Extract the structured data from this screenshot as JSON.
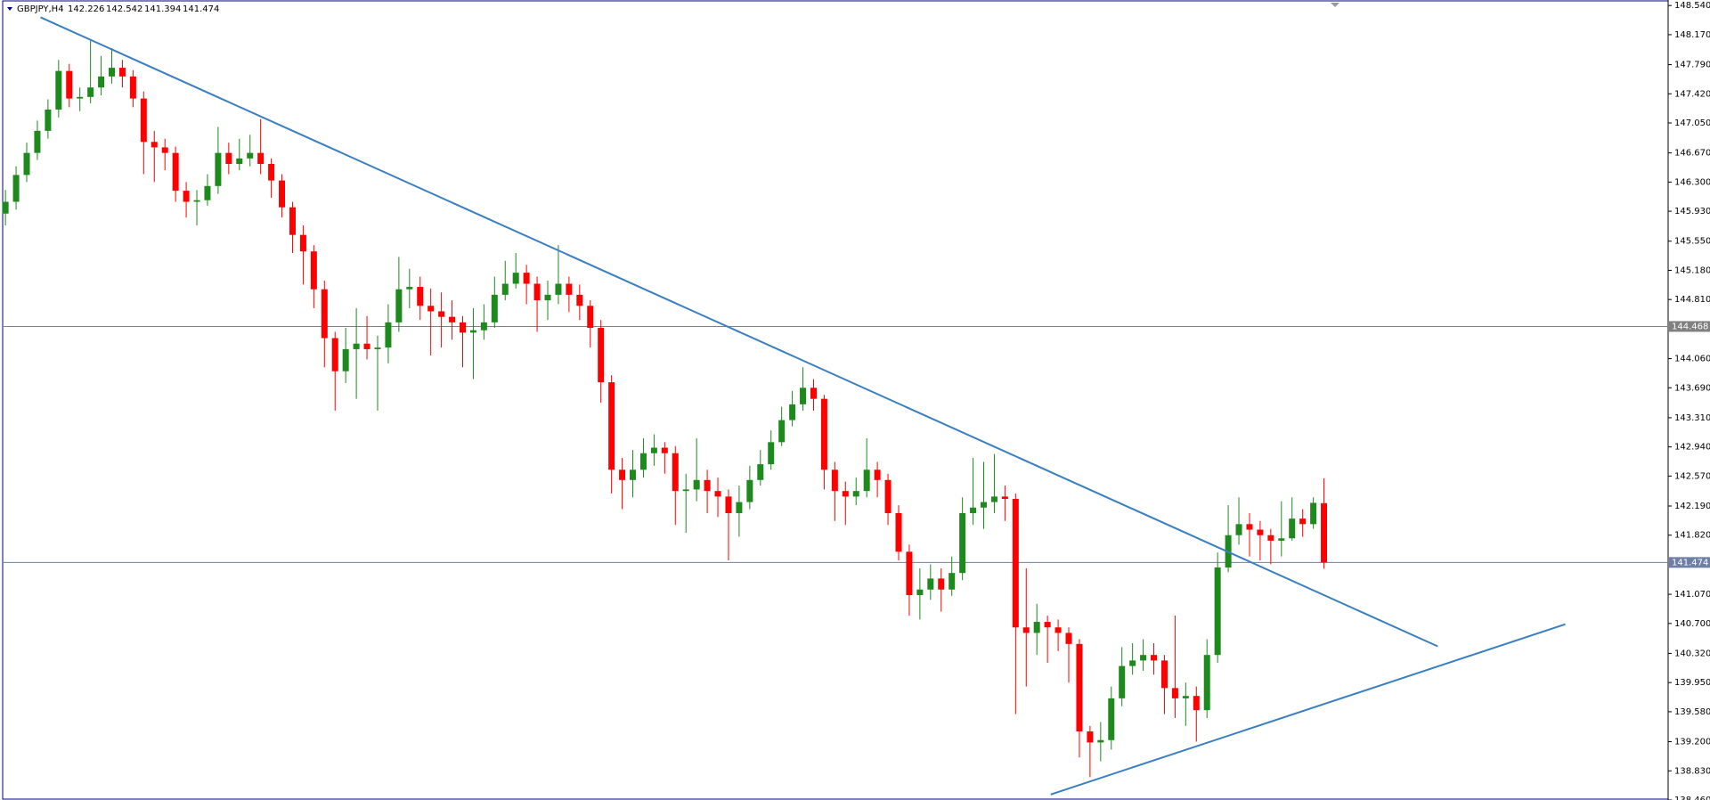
{
  "chart_data": {
    "type": "candlestick",
    "symbol": "GBPJPY,H4",
    "header_values": [
      142.226,
      142.542,
      141.394,
      141.474
    ],
    "up_color": "#1e8a1e",
    "down_color": "#ff0000",
    "ylim": [
      138.46,
      148.61
    ],
    "yticks": [
      {
        "value": 148.54,
        "label": "148.540"
      },
      {
        "value": 148.17,
        "label": "148.170"
      },
      {
        "value": 147.79,
        "label": "147.790"
      },
      {
        "value": 147.42,
        "label": "147.420"
      },
      {
        "value": 147.05,
        "label": "147.050"
      },
      {
        "value": 146.67,
        "label": "146.670"
      },
      {
        "value": 146.3,
        "label": "146.300"
      },
      {
        "value": 145.93,
        "label": "145.930"
      },
      {
        "value": 145.55,
        "label": "145.550"
      },
      {
        "value": 145.18,
        "label": "145.180"
      },
      {
        "value": 144.81,
        "label": "144.810"
      },
      {
        "value": 144.06,
        "label": "144.060"
      },
      {
        "value": 143.69,
        "label": "143.690"
      },
      {
        "value": 143.31,
        "label": "143.310"
      },
      {
        "value": 142.94,
        "label": "142.940"
      },
      {
        "value": 142.57,
        "label": "142.570"
      },
      {
        "value": 142.19,
        "label": "142.190"
      },
      {
        "value": 141.82,
        "label": "141.820"
      },
      {
        "value": 141.07,
        "label": "141.070"
      },
      {
        "value": 140.7,
        "label": "140.700"
      },
      {
        "value": 140.32,
        "label": "140.320"
      },
      {
        "value": 139.95,
        "label": "139.950"
      },
      {
        "value": 139.58,
        "label": "139.580"
      },
      {
        "value": 139.2,
        "label": "139.200"
      },
      {
        "value": 138.83,
        "label": "138.830"
      },
      {
        "value": 138.46,
        "label": "138.460"
      }
    ],
    "hlines": [
      {
        "value": 144.468,
        "color": "#808080"
      },
      {
        "value": 141.474,
        "color": "#6d7fa6"
      }
    ],
    "trendlines": [
      {
        "from": [
          3.3,
          148.39
        ],
        "to": [
          134.7,
          140.41
        ],
        "color": "#3a7fc0"
      },
      {
        "from": [
          98.3,
          138.53
        ],
        "to": [
          146.7,
          140.69
        ],
        "color": "#3a7fc0"
      }
    ],
    "ohlc": [
      [
        145.9,
        146.2,
        145.75,
        146.05
      ],
      [
        146.05,
        146.5,
        145.95,
        146.39
      ],
      [
        146.39,
        146.8,
        146.3,
        146.67
      ],
      [
        146.67,
        147.08,
        146.58,
        146.95
      ],
      [
        146.95,
        147.35,
        146.85,
        147.22
      ],
      [
        147.22,
        147.85,
        147.12,
        147.71
      ],
      [
        147.71,
        147.8,
        147.25,
        147.36
      ],
      [
        147.36,
        147.5,
        147.2,
        147.38
      ],
      [
        147.38,
        148.1,
        147.3,
        147.5
      ],
      [
        147.5,
        147.9,
        147.4,
        147.64
      ],
      [
        147.64,
        148.0,
        147.55,
        147.75
      ],
      [
        147.75,
        147.85,
        147.5,
        147.64
      ],
      [
        147.64,
        147.72,
        147.25,
        147.36
      ],
      [
        147.36,
        147.45,
        146.4,
        146.81
      ],
      [
        146.81,
        146.95,
        146.3,
        146.74
      ],
      [
        146.74,
        146.85,
        146.45,
        146.67
      ],
      [
        146.67,
        146.75,
        146.05,
        146.19
      ],
      [
        146.19,
        146.3,
        145.85,
        146.05
      ],
      [
        146.05,
        146.2,
        145.75,
        146.07
      ],
      [
        146.07,
        146.4,
        146.0,
        146.25
      ],
      [
        146.25,
        147.0,
        146.15,
        146.67
      ],
      [
        146.67,
        146.8,
        146.4,
        146.53
      ],
      [
        146.53,
        146.85,
        146.45,
        146.6
      ],
      [
        146.6,
        146.9,
        146.5,
        146.67
      ],
      [
        146.67,
        147.1,
        146.4,
        146.53
      ],
      [
        146.53,
        146.6,
        146.1,
        146.32
      ],
      [
        146.32,
        146.4,
        145.85,
        145.98
      ],
      [
        145.98,
        146.05,
        145.4,
        145.63
      ],
      [
        145.63,
        145.75,
        145.0,
        145.42
      ],
      [
        145.42,
        145.5,
        144.7,
        144.94
      ],
      [
        144.94,
        145.05,
        143.95,
        144.32
      ],
      [
        144.32,
        144.4,
        143.4,
        143.9
      ],
      [
        143.9,
        144.45,
        143.75,
        144.18
      ],
      [
        144.18,
        144.7,
        143.55,
        144.25
      ],
      [
        144.25,
        144.6,
        144.05,
        144.18
      ],
      [
        144.18,
        144.35,
        143.4,
        144.2
      ],
      [
        144.2,
        144.75,
        144.0,
        144.52
      ],
      [
        144.52,
        145.35,
        144.4,
        144.94
      ],
      [
        144.94,
        145.2,
        144.7,
        144.97
      ],
      [
        144.97,
        145.1,
        144.55,
        144.73
      ],
      [
        144.73,
        144.95,
        144.1,
        144.66
      ],
      [
        144.66,
        144.9,
        144.2,
        144.59
      ],
      [
        144.59,
        144.8,
        144.3,
        144.52
      ],
      [
        144.52,
        144.6,
        143.95,
        144.39
      ],
      [
        144.39,
        144.7,
        143.8,
        144.42
      ],
      [
        144.42,
        144.75,
        144.3,
        144.52
      ],
      [
        144.52,
        145.1,
        144.45,
        144.87
      ],
      [
        144.87,
        145.3,
        144.8,
        145.01
      ],
      [
        145.01,
        145.4,
        144.95,
        145.15
      ],
      [
        145.15,
        145.25,
        144.75,
        145.01
      ],
      [
        145.01,
        145.1,
        144.4,
        144.8
      ],
      [
        144.8,
        145.05,
        144.55,
        144.87
      ],
      [
        144.87,
        145.5,
        144.75,
        145.01
      ],
      [
        145.01,
        145.1,
        144.65,
        144.87
      ],
      [
        144.87,
        145.0,
        144.55,
        144.73
      ],
      [
        144.73,
        144.8,
        144.2,
        144.45
      ],
      [
        144.45,
        144.55,
        143.5,
        143.76
      ],
      [
        143.76,
        143.85,
        142.35,
        142.65
      ],
      [
        142.65,
        142.8,
        142.15,
        142.52
      ],
      [
        142.52,
        142.9,
        142.3,
        142.65
      ],
      [
        142.65,
        143.05,
        142.55,
        142.86
      ],
      [
        142.86,
        143.1,
        142.7,
        142.93
      ],
      [
        142.93,
        143.0,
        142.6,
        142.86
      ],
      [
        142.86,
        142.95,
        141.95,
        142.38
      ],
      [
        142.38,
        142.6,
        141.85,
        142.4
      ],
      [
        142.4,
        143.05,
        142.25,
        142.52
      ],
      [
        142.52,
        142.65,
        142.1,
        142.38
      ],
      [
        142.38,
        142.55,
        142.05,
        142.31
      ],
      [
        142.31,
        142.4,
        141.5,
        142.1
      ],
      [
        142.1,
        142.45,
        141.8,
        142.24
      ],
      [
        142.24,
        142.7,
        142.15,
        142.52
      ],
      [
        142.52,
        142.9,
        142.45,
        142.72
      ],
      [
        142.72,
        143.15,
        142.65,
        143.0
      ],
      [
        143.0,
        143.45,
        142.95,
        143.28
      ],
      [
        143.28,
        143.65,
        143.2,
        143.48
      ],
      [
        143.48,
        143.95,
        143.4,
        143.69
      ],
      [
        143.69,
        143.8,
        143.4,
        143.55
      ],
      [
        143.55,
        143.6,
        142.4,
        142.65
      ],
      [
        142.65,
        142.75,
        142.0,
        142.38
      ],
      [
        142.38,
        142.5,
        141.95,
        142.31
      ],
      [
        142.31,
        142.55,
        142.2,
        142.38
      ],
      [
        142.38,
        143.05,
        142.3,
        142.65
      ],
      [
        142.65,
        142.75,
        142.3,
        142.52
      ],
      [
        142.52,
        142.6,
        141.95,
        142.1
      ],
      [
        142.1,
        142.2,
        141.5,
        141.61
      ],
      [
        141.61,
        141.7,
        140.8,
        141.06
      ],
      [
        141.06,
        141.4,
        140.75,
        141.13
      ],
      [
        141.13,
        141.45,
        141.0,
        141.27
      ],
      [
        141.27,
        141.4,
        140.85,
        141.13
      ],
      [
        141.13,
        141.55,
        141.05,
        141.34
      ],
      [
        141.34,
        142.3,
        141.25,
        142.1
      ],
      [
        142.1,
        142.8,
        141.95,
        142.17
      ],
      [
        142.17,
        142.75,
        141.9,
        142.24
      ],
      [
        142.24,
        142.85,
        142.1,
        142.31
      ],
      [
        142.31,
        142.45,
        142.0,
        142.28
      ],
      [
        142.28,
        142.35,
        139.55,
        140.65
      ],
      [
        140.65,
        141.4,
        139.9,
        140.58
      ],
      [
        140.58,
        140.95,
        140.3,
        140.72
      ],
      [
        140.72,
        140.8,
        140.2,
        140.65
      ],
      [
        140.65,
        140.75,
        140.35,
        140.58
      ],
      [
        140.58,
        140.65,
        139.95,
        140.44
      ],
      [
        140.44,
        140.5,
        139.0,
        139.33
      ],
      [
        139.33,
        139.4,
        138.75,
        139.19
      ],
      [
        139.19,
        139.45,
        138.95,
        139.22
      ],
      [
        139.22,
        139.9,
        139.1,
        139.75
      ],
      [
        139.75,
        140.4,
        139.65,
        140.16
      ],
      [
        140.16,
        140.45,
        140.05,
        140.23
      ],
      [
        140.23,
        140.5,
        140.1,
        140.3
      ],
      [
        140.3,
        140.45,
        140.05,
        140.23
      ],
      [
        140.23,
        140.3,
        139.55,
        139.88
      ],
      [
        139.88,
        140.8,
        139.5,
        139.75
      ],
      [
        139.75,
        139.95,
        139.4,
        139.78
      ],
      [
        139.78,
        139.9,
        139.2,
        139.6
      ],
      [
        139.6,
        140.5,
        139.5,
        140.3
      ],
      [
        140.3,
        141.6,
        140.2,
        141.41
      ],
      [
        141.41,
        142.2,
        141.35,
        141.82
      ],
      [
        141.82,
        142.3,
        141.7,
        141.96
      ],
      [
        141.96,
        142.1,
        141.55,
        141.89
      ],
      [
        141.89,
        142.0,
        141.5,
        141.82
      ],
      [
        141.82,
        141.9,
        141.45,
        141.75
      ],
      [
        141.75,
        142.25,
        141.55,
        141.78
      ],
      [
        141.78,
        142.3,
        141.75,
        142.03
      ],
      [
        142.03,
        142.15,
        141.8,
        141.96
      ],
      [
        141.96,
        142.3,
        141.9,
        142.23
      ],
      [
        142.226,
        142.542,
        141.394,
        141.474
      ]
    ]
  }
}
